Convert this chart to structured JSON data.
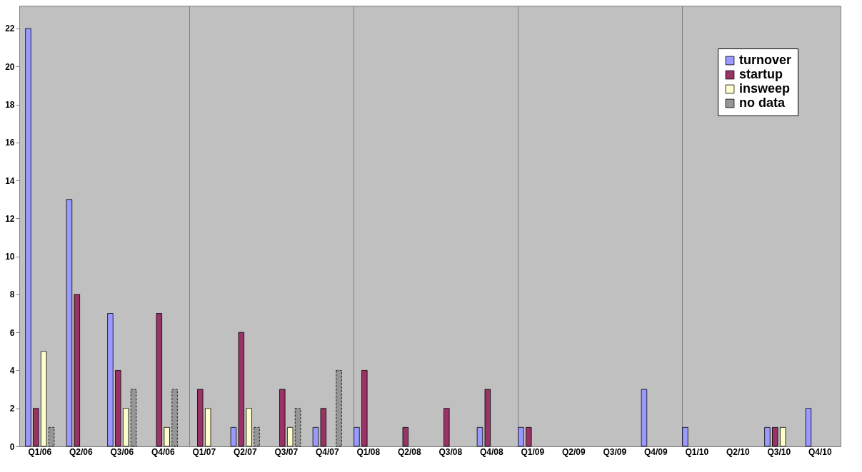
{
  "chart_data": {
    "type": "bar",
    "categories": [
      "Q1/06",
      "Q2/06",
      "Q3/06",
      "Q4/06",
      "Q1/07",
      "Q2/07",
      "Q3/07",
      "Q4/07",
      "Q1/08",
      "Q2/08",
      "Q3/08",
      "Q4/08",
      "Q1/09",
      "Q2/09",
      "Q3/09",
      "Q4/09",
      "Q1/10",
      "Q2/10",
      "Q3/10",
      "Q4/10"
    ],
    "series": [
      {
        "name": "turnover",
        "color": "#9999ff",
        "values": [
          22,
          13,
          7,
          0,
          0,
          1,
          0,
          1,
          1,
          0,
          0,
          1,
          1,
          0,
          0,
          3,
          1,
          0,
          1,
          2
        ]
      },
      {
        "name": "startup",
        "color": "#993366",
        "values": [
          2,
          8,
          4,
          7,
          3,
          6,
          3,
          2,
          4,
          1,
          2,
          3,
          1,
          0,
          0,
          0,
          0,
          0,
          1,
          0
        ]
      },
      {
        "name": "insweep",
        "color": "#ffffcc",
        "values": [
          5,
          0,
          2,
          1,
          2,
          2,
          1,
          0,
          0,
          0,
          0,
          0,
          0,
          0,
          0,
          0,
          0,
          0,
          1,
          0
        ]
      },
      {
        "name": "no data",
        "color": "#969696",
        "line_style": "dashed",
        "values": [
          1,
          0,
          3,
          3,
          0,
          1,
          2,
          4,
          0,
          0,
          0,
          0,
          0,
          0,
          0,
          0,
          0,
          0,
          0,
          0
        ]
      }
    ],
    "ylim": [
      0,
      23.2
    ],
    "yticks": [
      0,
      2,
      4,
      6,
      8,
      10,
      12,
      14,
      16,
      18,
      20,
      22
    ],
    "grid": "x",
    "legend": "top right"
  }
}
